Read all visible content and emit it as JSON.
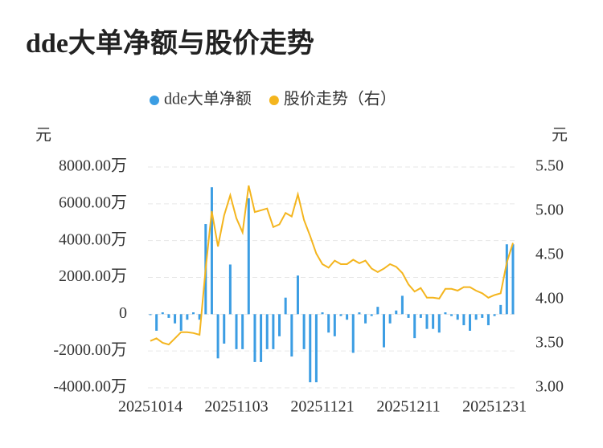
{
  "chart_data": {
    "type": "bar-line",
    "title": "dde大单净额与股价走势",
    "y_unit": "元",
    "y2_unit": "元",
    "categories": [
      "20251014",
      null,
      null,
      null,
      null,
      null,
      null,
      null,
      null,
      null,
      null,
      null,
      null,
      null,
      "20251103",
      null,
      null,
      null,
      null,
      null,
      null,
      null,
      null,
      null,
      null,
      null,
      null,
      null,
      "20251121",
      null,
      null,
      null,
      null,
      null,
      null,
      null,
      null,
      null,
      null,
      null,
      null,
      null,
      "20251211",
      null,
      null,
      null,
      null,
      null,
      null,
      null,
      null,
      null,
      null,
      null,
      null,
      null,
      "20251231",
      null,
      null,
      null
    ],
    "ylim": [
      -4000,
      8000
    ],
    "yticks": [
      {
        "value": -4000,
        "label": "-4000.00万"
      },
      {
        "value": -2000,
        "label": "-2000.00万"
      },
      0,
      {
        "value": 2000,
        "label": "2000.00万"
      },
      {
        "value": 4000,
        "label": "4000.00万"
      },
      {
        "value": 6000,
        "label": "6000.00万"
      },
      {
        "value": 8000,
        "label": "8000.00万"
      }
    ],
    "y2lim": [
      3.0,
      5.5
    ],
    "y2ticks": [
      {
        "value": 3.0,
        "label": "3.00"
      },
      {
        "value": 3.5,
        "label": "3.50"
      },
      {
        "value": 4.0,
        "label": "4.00"
      },
      {
        "value": 4.5,
        "label": "4.50"
      },
      {
        "value": 5.0,
        "label": "5.00"
      },
      {
        "value": 5.5,
        "label": "5.50"
      }
    ],
    "grid": true,
    "series": [
      {
        "name": "dde大单净额",
        "kind": "bar",
        "color": "#3b9de3",
        "values": [
          -50,
          -900,
          100,
          -200,
          -500,
          -900,
          -300,
          100,
          -300,
          4900,
          6900,
          -2400,
          -1600,
          2700,
          -1900,
          -1900,
          6300,
          -2600,
          -2600,
          -1900,
          -1900,
          -1200,
          900,
          -2300,
          2100,
          -1900,
          -3700,
          -3700,
          100,
          -1000,
          -1200,
          -100,
          -300,
          -2100,
          100,
          -500,
          -100,
          400,
          -1800,
          -500,
          200,
          1000,
          -200,
          -1300,
          -200,
          -800,
          -800,
          -1000,
          100,
          -100,
          -300,
          -600,
          -900,
          -300,
          -200,
          -600,
          -100,
          500,
          3800,
          3800
        ]
      },
      {
        "name": "股价走势（右）",
        "kind": "line",
        "axis": "y2",
        "color": "#f4b51e",
        "values": [
          3.53,
          3.56,
          3.51,
          3.49,
          3.56,
          3.63,
          3.63,
          3.62,
          3.6,
          4.35,
          5.0,
          4.6,
          4.95,
          5.18,
          4.92,
          4.76,
          5.29,
          4.99,
          5.01,
          5.03,
          4.82,
          4.85,
          4.98,
          4.94,
          5.19,
          4.9,
          4.72,
          4.52,
          4.4,
          4.36,
          4.44,
          4.4,
          4.4,
          4.45,
          4.41,
          4.44,
          4.35,
          4.31,
          4.35,
          4.4,
          4.37,
          4.3,
          4.17,
          4.09,
          4.13,
          4.02,
          4.02,
          4.01,
          4.12,
          4.12,
          4.1,
          4.14,
          4.14,
          4.1,
          4.07,
          4.02,
          4.05,
          4.07,
          4.42,
          4.64
        ]
      }
    ]
  }
}
